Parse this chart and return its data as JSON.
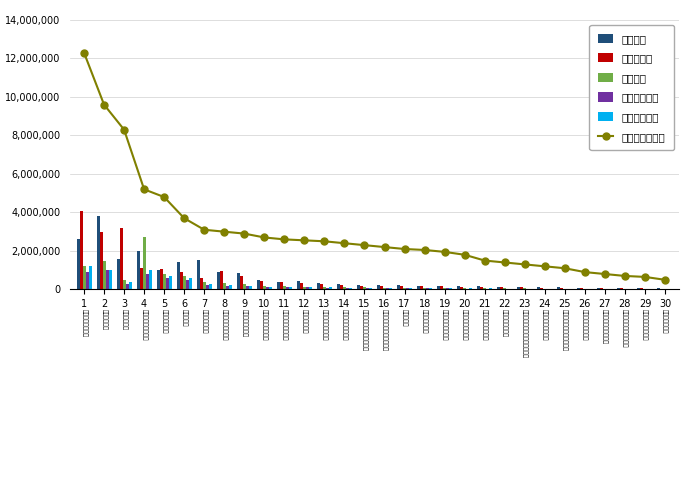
{
  "categories": [
    "국민건강보험공단",
    "국민연금공단",
    "대한적십자사",
    "건강보험심사평가원",
    "국립중앙의료원",
    "국립암센터",
    "한국보육진흥원",
    "한국보건복지인재원",
    "한국장애인개발원",
    "한국보건산업진흥원",
    "한국사회복지협의회",
    "아동권리보장원",
    "한국사회보장정보원",
    "한국노인인력개발원",
    "한국건강의료인국가시험원",
    "국민건강보험공단온산병원",
    "서울요양원",
    "한국의약진흥원",
    "한국보건의료연구원",
    "의료기관평가인증원",
    "한국보건의료정보원",
    "한국공중조직은행",
    "대구경북첨단의료산업진흥재단",
    "한국자활지원개발원",
    "오충첨단의료산업진흥재단",
    "한국장기조직기증원",
    "한국국제보건의료재단",
    "한국의료분쟁조정중재원",
    "국가생명유리정책원",
    "사회보장정보원"
  ],
  "x_labels": [
    "1",
    "2",
    "3",
    "4",
    "5",
    "6",
    "7",
    "8",
    "9",
    "10",
    "11",
    "12",
    "13",
    "14",
    "15",
    "16",
    "17",
    "18",
    "19",
    "20",
    "21",
    "22",
    "23",
    "24",
    "25",
    "26",
    "27",
    "28",
    "29",
    "30"
  ],
  "참여지수": [
    2600000,
    3800000,
    1600000,
    2000000,
    1000000,
    1400000,
    1550000,
    900000,
    850000,
    500000,
    400000,
    450000,
    350000,
    300000,
    250000,
    250000,
    250000,
    200000,
    200000,
    180000,
    170000,
    150000,
    150000,
    100000,
    100000,
    80000,
    70000,
    60000,
    60000,
    50000
  ],
  "미디어지수": [
    4100000,
    3000000,
    3200000,
    1100000,
    1050000,
    900000,
    600000,
    950000,
    700000,
    450000,
    380000,
    320000,
    280000,
    250000,
    200000,
    200000,
    180000,
    180000,
    160000,
    150000,
    130000,
    120000,
    120000,
    90000,
    90000,
    70000,
    65000,
    55000,
    55000,
    45000
  ],
  "소통지수": [
    1200000,
    1500000,
    500000,
    2700000,
    800000,
    700000,
    400000,
    350000,
    300000,
    200000,
    180000,
    150000,
    130000,
    110000,
    100000,
    90000,
    85000,
    80000,
    75000,
    70000,
    60000,
    55000,
    55000,
    45000,
    40000,
    35000,
    30000,
    28000,
    25000,
    22000
  ],
  "커뮤니티지수": [
    900000,
    1000000,
    300000,
    800000,
    600000,
    500000,
    250000,
    200000,
    180000,
    150000,
    120000,
    100000,
    90000,
    80000,
    70000,
    65000,
    60000,
    55000,
    50000,
    45000,
    40000,
    38000,
    35000,
    30000,
    28000,
    25000,
    22000,
    20000,
    18000,
    15000
  ],
  "사회공헌지수": [
    1200000,
    1000000,
    400000,
    1000000,
    700000,
    600000,
    300000,
    250000,
    200000,
    150000,
    130000,
    120000,
    100000,
    90000,
    80000,
    75000,
    70000,
    65000,
    60000,
    55000,
    50000,
    45000,
    42000,
    35000,
    32000,
    28000,
    25000,
    22000,
    20000,
    18000
  ],
  "브랜드평판지수": [
    12300000,
    9600000,
    8300000,
    5200000,
    4800000,
    3700000,
    3100000,
    3000000,
    2900000,
    2700000,
    2600000,
    2550000,
    2500000,
    2400000,
    2300000,
    2200000,
    2100000,
    2050000,
    1950000,
    1800000,
    1500000,
    1400000,
    1300000,
    1200000,
    1100000,
    900000,
    800000,
    700000,
    650000,
    500000
  ],
  "bar_colors": {
    "참여지수": "#1f4e79",
    "미디어지수": "#c00000",
    "소통지수": "#70ad47",
    "커뮤니티지수": "#7030a0",
    "사회공헌지수": "#00b0f0"
  },
  "line_color": "#808000",
  "ylim": [
    0,
    14000000
  ],
  "yticks": [
    0,
    2000000,
    4000000,
    6000000,
    8000000,
    10000000,
    12000000,
    14000000
  ],
  "legend_labels": [
    "참여지수",
    "미디어지수",
    "소통지수",
    "커뮤니티지수",
    "사회공헌지수",
    "브랜드평판지수"
  ],
  "background_color": "#ffffff"
}
